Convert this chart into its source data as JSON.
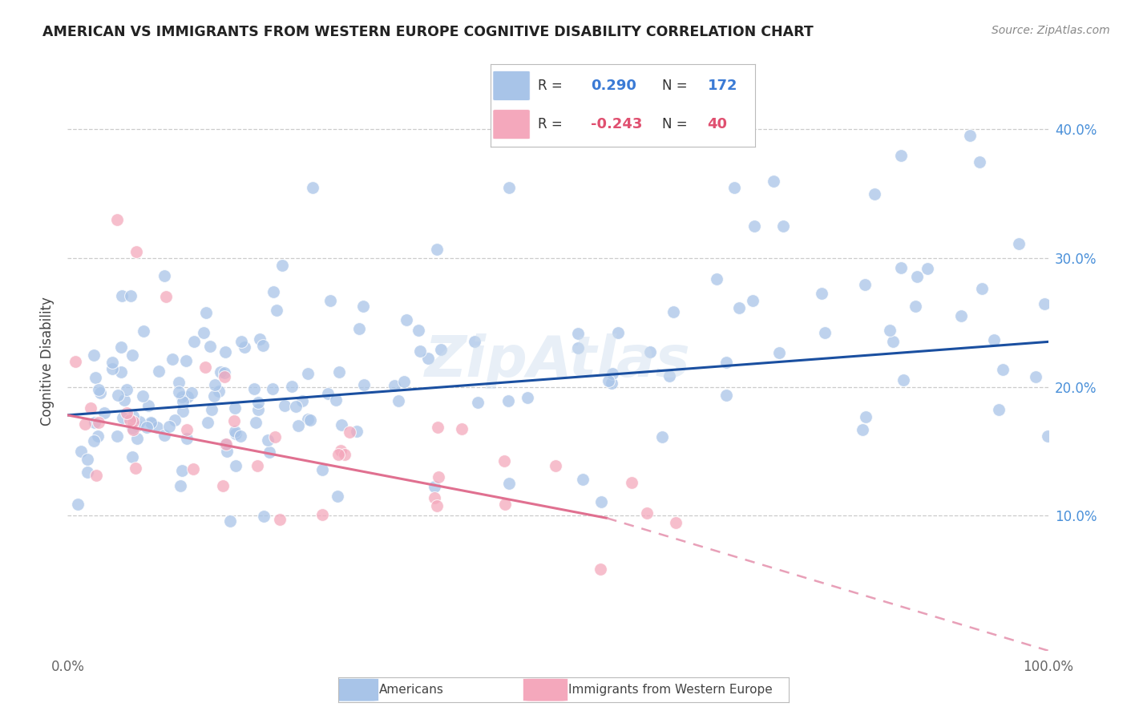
{
  "title": "AMERICAN VS IMMIGRANTS FROM WESTERN EUROPE COGNITIVE DISABILITY CORRELATION CHART",
  "source": "Source: ZipAtlas.com",
  "ylabel": "Cognitive Disability",
  "xlim": [
    0.0,
    1.0
  ],
  "ylim": [
    -0.005,
    0.445
  ],
  "r_american": 0.29,
  "n_american": 172,
  "r_immigrant": -0.243,
  "n_immigrant": 40,
  "american_color": "#a8c4e8",
  "immigrant_color": "#f4a8bc",
  "trend_american_color": "#1a4fa0",
  "trend_immigrant_solid_color": "#e07090",
  "trend_immigrant_dashed_color": "#e8a0b8",
  "background_color": "#ffffff",
  "grid_color": "#cccccc",
  "ytick_color": "#4a90d9",
  "r_color_american": "#3a7ad5",
  "r_color_immigrant": "#e05070",
  "n_color_american": "#3a7ad5",
  "n_color_immigrant": "#e05070"
}
